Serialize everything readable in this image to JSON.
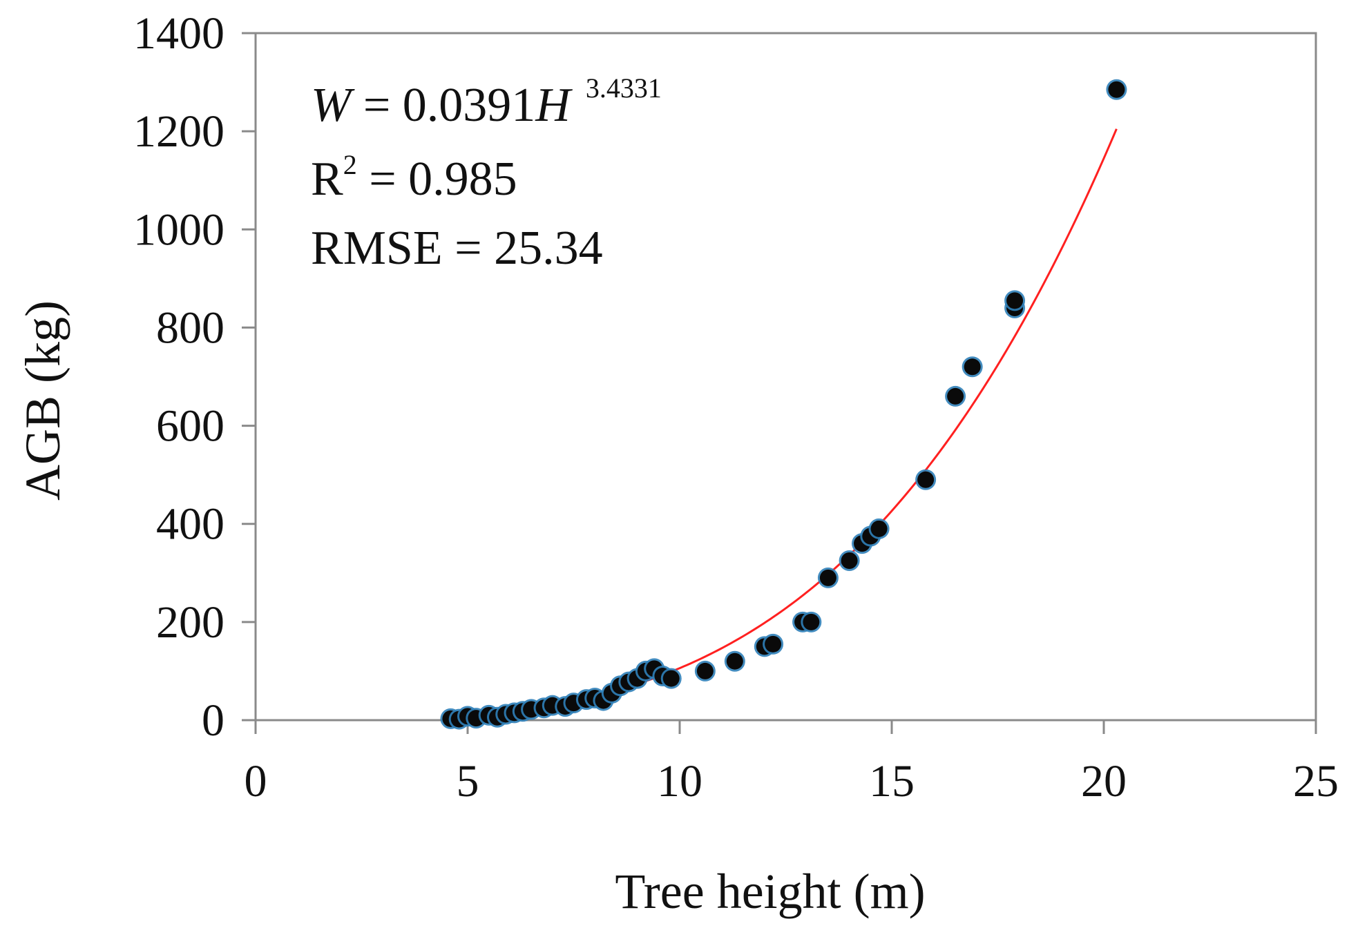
{
  "chart_data": {
    "type": "scatter",
    "title": "",
    "xlabel": "Tree height (m)",
    "ylabel": "AGB (kg)",
    "xlim": [
      0,
      25
    ],
    "ylim": [
      0,
      1400
    ],
    "x_ticks": [
      0,
      5,
      10,
      15,
      20,
      25
    ],
    "y_ticks": [
      0,
      200,
      400,
      600,
      800,
      1000,
      1200,
      1400
    ],
    "x_tick_labels": [
      "0",
      "5",
      "10",
      "15",
      "20",
      "25"
    ],
    "y_tick_labels": [
      "0",
      "200",
      "400",
      "600",
      "800",
      "1000",
      "1200",
      "1400"
    ],
    "grid": false,
    "legend": "none",
    "colors": {
      "points": "#0a0a0a",
      "point_halo": "#2f7fb8",
      "fit_line": "#ff2020",
      "axis": "#8a8a8a"
    },
    "series": [
      {
        "name": "observed",
        "kind": "scatter",
        "x": [
          4.6,
          4.8,
          5.0,
          5.2,
          5.5,
          5.7,
          5.9,
          6.1,
          6.3,
          6.5,
          6.8,
          7.0,
          7.3,
          7.5,
          7.8,
          8.0,
          8.2,
          8.4,
          8.6,
          8.8,
          9.0,
          9.2,
          9.4,
          9.6,
          9.8,
          10.6,
          11.3,
          12.0,
          12.2,
          12.9,
          13.1,
          13.5,
          14.0,
          14.3,
          14.5,
          14.7,
          15.8,
          16.5,
          16.9,
          17.9,
          17.9,
          20.3
        ],
        "y": [
          3,
          2,
          8,
          4,
          10,
          6,
          12,
          15,
          18,
          22,
          25,
          30,
          28,
          35,
          42,
          45,
          40,
          55,
          70,
          78,
          85,
          100,
          105,
          90,
          85,
          100,
          120,
          150,
          155,
          200,
          200,
          290,
          325,
          360,
          375,
          390,
          490,
          660,
          720,
          840,
          855,
          1285
        ]
      },
      {
        "name": "fit",
        "kind": "line",
        "equation": "W = 0.0391H^3.4331",
        "a": 0.0391,
        "b": 3.4331,
        "x_range": [
          4.6,
          20.3
        ]
      }
    ],
    "annotations": {
      "eq_var_w": "W",
      "eq_mid": " = 0.0391",
      "eq_var_h": "H",
      "eq_exp": "3.4331",
      "r2_r": "R",
      "r2_sup": "2",
      "r2_rest": " = 0.985",
      "rmse": "RMSE = 25.34"
    }
  }
}
